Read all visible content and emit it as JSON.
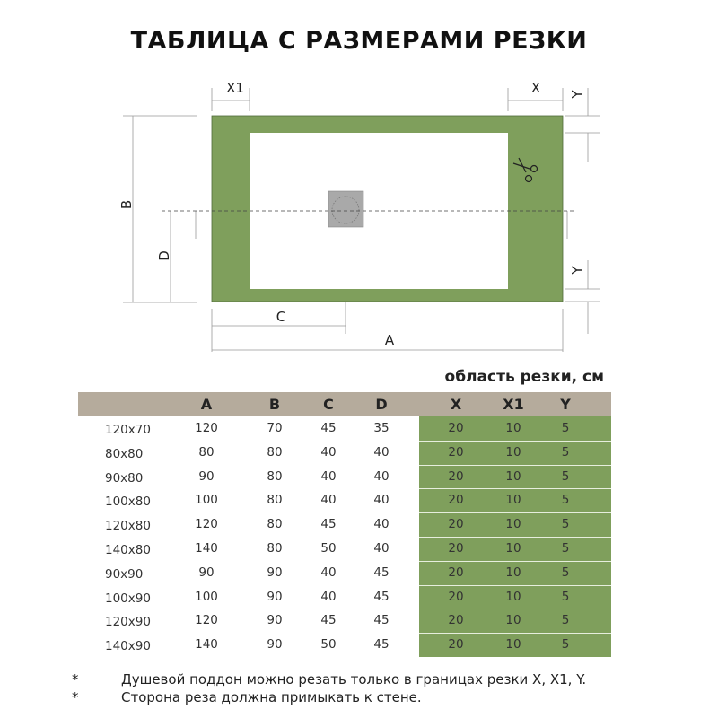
{
  "title": "ТАБЛИЦА С РАЗМЕРАМИ РЕЗКИ",
  "diagram": {
    "labels": {
      "x1": "X1",
      "x": "X",
      "y_top": "Y",
      "y_bottom": "Y",
      "b": "B",
      "d": "D",
      "c": "C",
      "a": "A"
    },
    "colors": {
      "cut_area": "#7f9f5c",
      "drain": "#a9a9a9",
      "header": "#b5ab9c"
    },
    "icons": [
      "scissors-icon",
      "drain-icon"
    ]
  },
  "table": {
    "caption": "область резки, см",
    "headers": [
      "",
      "A",
      "B",
      "C",
      "D",
      "X",
      "X1",
      "Y"
    ],
    "rows": [
      [
        "120x70",
        "120",
        "70",
        "45",
        "35",
        "20",
        "10",
        "5"
      ],
      [
        "80x80",
        "80",
        "80",
        "40",
        "40",
        "20",
        "10",
        "5"
      ],
      [
        "90x80",
        "90",
        "80",
        "40",
        "40",
        "20",
        "10",
        "5"
      ],
      [
        "100x80",
        "100",
        "80",
        "40",
        "40",
        "20",
        "10",
        "5"
      ],
      [
        "120x80",
        "120",
        "80",
        "45",
        "40",
        "20",
        "10",
        "5"
      ],
      [
        "140x80",
        "140",
        "80",
        "50",
        "40",
        "20",
        "10",
        "5"
      ],
      [
        "90x90",
        "90",
        "90",
        "40",
        "45",
        "20",
        "10",
        "5"
      ],
      [
        "100x90",
        "100",
        "90",
        "40",
        "45",
        "20",
        "10",
        "5"
      ],
      [
        "120x90",
        "120",
        "90",
        "45",
        "45",
        "20",
        "10",
        "5"
      ],
      [
        "140x90",
        "140",
        "90",
        "50",
        "45",
        "20",
        "10",
        "5"
      ]
    ]
  },
  "notes": [
    {
      "mark": "*",
      "text": "Душевой поддон можно резать только в границах резки X, X1, Y."
    },
    {
      "mark": "*",
      "text": "Сторона реза должна примыкать к стене."
    }
  ]
}
